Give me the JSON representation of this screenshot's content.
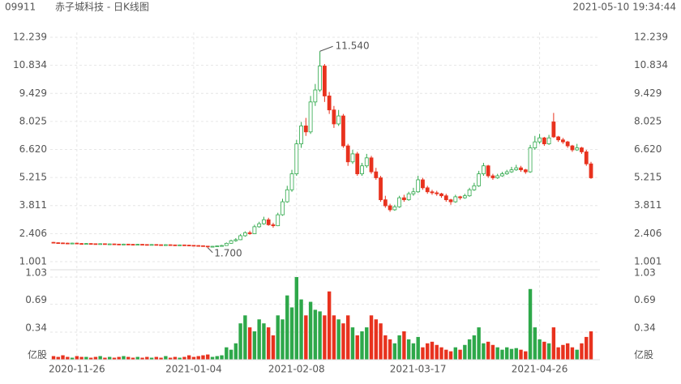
{
  "header": {
    "code": "09911",
    "title": "赤子城科技 - 日K线图",
    "timestamp": "2021-05-10 19:34:44"
  },
  "chart_data": {
    "type": "candlestick",
    "up_color": "#2ea84a",
    "down_color": "#e8321e",
    "categories": [
      null,
      null,
      null,
      null,
      null,
      "2020-11-26",
      null,
      null,
      null,
      null,
      null,
      null,
      null,
      null,
      null,
      null,
      null,
      null,
      null,
      null,
      null,
      null,
      null,
      null,
      null,
      null,
      null,
      null,
      null,
      null,
      "2021-01-04",
      null,
      null,
      null,
      null,
      null,
      null,
      null,
      null,
      null,
      null,
      null,
      null,
      null,
      null,
      null,
      null,
      null,
      null,
      null,
      null,
      null,
      "2021-02-08",
      null,
      null,
      null,
      null,
      null,
      null,
      null,
      null,
      null,
      null,
      null,
      null,
      null,
      null,
      null,
      null,
      null,
      null,
      null,
      null,
      null,
      null,
      null,
      null,
      null,
      "2021-03-17",
      null,
      null,
      null,
      null,
      null,
      null,
      null,
      null,
      null,
      null,
      null,
      null,
      null,
      null,
      null,
      null,
      null,
      null,
      null,
      null,
      null,
      null,
      null,
      null,
      null,
      "2021-04-26",
      null,
      null,
      null,
      null,
      null,
      null,
      null,
      null,
      null,
      null,
      null
    ],
    "ohlc": [
      [
        1.97,
        1.99,
        1.93,
        1.95
      ],
      [
        1.95,
        1.97,
        1.92,
        1.94
      ],
      [
        1.94,
        1.96,
        1.91,
        1.93
      ],
      [
        1.93,
        1.95,
        1.9,
        1.92
      ],
      [
        1.92,
        1.95,
        1.9,
        1.93
      ],
      [
        1.93,
        1.94,
        1.89,
        1.91
      ],
      [
        1.91,
        1.93,
        1.88,
        1.9
      ],
      [
        1.9,
        1.93,
        1.89,
        1.91
      ],
      [
        1.91,
        1.92,
        1.88,
        1.9
      ],
      [
        1.9,
        1.91,
        1.87,
        1.89
      ],
      [
        1.89,
        1.92,
        1.88,
        1.9
      ],
      [
        1.9,
        1.91,
        1.86,
        1.88
      ],
      [
        1.88,
        1.91,
        1.87,
        1.89
      ],
      [
        1.89,
        1.9,
        1.86,
        1.88
      ],
      [
        1.88,
        1.89,
        1.85,
        1.87
      ],
      [
        1.87,
        1.9,
        1.86,
        1.88
      ],
      [
        1.88,
        1.89,
        1.85,
        1.87
      ],
      [
        1.87,
        1.88,
        1.84,
        1.86
      ],
      [
        1.86,
        1.89,
        1.85,
        1.87
      ],
      [
        1.87,
        1.88,
        1.84,
        1.86
      ],
      [
        1.86,
        1.87,
        1.83,
        1.85
      ],
      [
        1.85,
        1.88,
        1.84,
        1.86
      ],
      [
        1.86,
        1.87,
        1.83,
        1.85
      ],
      [
        1.85,
        1.86,
        1.82,
        1.84
      ],
      [
        1.84,
        1.87,
        1.83,
        1.85
      ],
      [
        1.85,
        1.86,
        1.82,
        1.84
      ],
      [
        1.84,
        1.85,
        1.81,
        1.83
      ],
      [
        1.83,
        1.86,
        1.82,
        1.84
      ],
      [
        1.84,
        1.85,
        1.81,
        1.83
      ],
      [
        1.83,
        1.84,
        1.8,
        1.82
      ],
      [
        1.82,
        1.83,
        1.79,
        1.81
      ],
      [
        1.81,
        1.82,
        1.78,
        1.8
      ],
      [
        1.8,
        1.81,
        1.76,
        1.78
      ],
      [
        1.78,
        1.79,
        1.7,
        1.75
      ],
      [
        1.75,
        1.79,
        1.74,
        1.77
      ],
      [
        1.77,
        1.81,
        1.76,
        1.79
      ],
      [
        1.79,
        1.84,
        1.78,
        1.81
      ],
      [
        1.81,
        1.96,
        1.8,
        1.92
      ],
      [
        1.92,
        2.1,
        1.9,
        2.05
      ],
      [
        2.05,
        2.18,
        2.0,
        2.1
      ],
      [
        2.1,
        2.38,
        2.08,
        2.3
      ],
      [
        2.3,
        2.52,
        2.25,
        2.45
      ],
      [
        2.45,
        2.55,
        2.35,
        2.4
      ],
      [
        2.4,
        2.85,
        2.38,
        2.75
      ],
      [
        2.75,
        3.0,
        2.7,
        2.9
      ],
      [
        2.9,
        3.25,
        2.85,
        3.1
      ],
      [
        3.1,
        3.2,
        2.8,
        2.85
      ],
      [
        2.85,
        2.95,
        2.7,
        2.8
      ],
      [
        2.8,
        3.45,
        2.78,
        3.35
      ],
      [
        3.35,
        4.15,
        3.3,
        4.0
      ],
      [
        4.0,
        4.8,
        3.95,
        4.6
      ],
      [
        4.6,
        5.6,
        4.5,
        5.4
      ],
      [
        5.4,
        7.1,
        5.3,
        6.9
      ],
      [
        6.9,
        8.0,
        6.7,
        7.8
      ],
      [
        7.8,
        8.2,
        7.3,
        7.5
      ],
      [
        7.5,
        9.3,
        7.4,
        9.0
      ],
      [
        9.0,
        9.9,
        8.8,
        9.6
      ],
      [
        9.6,
        11.54,
        9.5,
        10.8
      ],
      [
        10.8,
        10.9,
        9.0,
        9.3
      ],
      [
        9.3,
        9.5,
        8.4,
        8.6
      ],
      [
        8.6,
        8.8,
        7.7,
        7.9
      ],
      [
        7.9,
        8.6,
        7.8,
        8.3
      ],
      [
        8.3,
        8.4,
        6.7,
        6.8
      ],
      [
        6.8,
        6.9,
        5.8,
        6.0
      ],
      [
        6.0,
        6.6,
        5.9,
        6.4
      ],
      [
        6.4,
        6.5,
        5.3,
        5.4
      ],
      [
        5.4,
        5.95,
        5.3,
        5.8
      ],
      [
        5.8,
        6.4,
        5.7,
        6.2
      ],
      [
        6.2,
        6.3,
        5.4,
        5.5
      ],
      [
        5.5,
        5.7,
        5.1,
        5.2
      ],
      [
        5.2,
        5.3,
        4.0,
        4.1
      ],
      [
        4.1,
        4.3,
        3.7,
        3.8
      ],
      [
        3.8,
        3.9,
        3.5,
        3.6
      ],
      [
        3.6,
        3.85,
        3.55,
        3.75
      ],
      [
        3.75,
        4.3,
        3.7,
        4.2
      ],
      [
        4.2,
        4.35,
        4.0,
        4.1
      ],
      [
        4.1,
        4.5,
        4.05,
        4.4
      ],
      [
        4.4,
        4.7,
        4.3,
        4.5
      ],
      [
        4.5,
        5.3,
        4.45,
        5.1
      ],
      [
        5.1,
        5.2,
        4.6,
        4.7
      ],
      [
        4.7,
        4.8,
        4.4,
        4.5
      ],
      [
        4.5,
        4.6,
        4.35,
        4.45
      ],
      [
        4.45,
        4.55,
        4.3,
        4.4
      ],
      [
        4.4,
        4.45,
        4.2,
        4.3
      ],
      [
        4.3,
        4.4,
        4.0,
        4.1
      ],
      [
        4.1,
        4.15,
        3.85,
        4.0
      ],
      [
        4.0,
        4.35,
        3.95,
        4.25
      ],
      [
        4.25,
        4.3,
        4.1,
        4.2
      ],
      [
        4.2,
        4.4,
        4.15,
        4.3
      ],
      [
        4.3,
        4.7,
        4.25,
        4.6
      ],
      [
        4.6,
        4.95,
        4.55,
        4.8
      ],
      [
        4.8,
        5.55,
        4.75,
        5.4
      ],
      [
        5.4,
        5.95,
        5.3,
        5.8
      ],
      [
        5.8,
        5.85,
        5.2,
        5.3
      ],
      [
        5.3,
        5.4,
        5.1,
        5.2
      ],
      [
        5.2,
        5.4,
        5.15,
        5.3
      ],
      [
        5.3,
        5.5,
        5.25,
        5.4
      ],
      [
        5.4,
        5.6,
        5.35,
        5.5
      ],
      [
        5.5,
        5.75,
        5.45,
        5.6
      ],
      [
        5.6,
        5.85,
        5.55,
        5.7
      ],
      [
        5.7,
        5.8,
        5.5,
        5.6
      ],
      [
        5.6,
        5.65,
        5.4,
        5.5
      ],
      [
        5.5,
        6.85,
        5.45,
        6.7
      ],
      [
        6.7,
        7.3,
        6.6,
        7.0
      ],
      [
        7.0,
        7.4,
        6.9,
        7.2
      ],
      [
        7.2,
        7.25,
        6.8,
        6.9
      ],
      [
        6.9,
        7.35,
        6.85,
        7.2
      ],
      [
        8.0,
        8.45,
        7.2,
        7.25
      ],
      [
        7.25,
        7.3,
        7.0,
        7.1
      ],
      [
        7.1,
        7.2,
        6.9,
        7.0
      ],
      [
        7.0,
        7.05,
        6.7,
        6.8
      ],
      [
        6.8,
        6.85,
        6.5,
        6.6
      ],
      [
        6.6,
        6.9,
        6.55,
        6.7
      ],
      [
        6.7,
        6.75,
        6.4,
        6.5
      ],
      [
        6.5,
        6.6,
        5.8,
        5.9
      ],
      [
        5.9,
        6.0,
        5.15,
        5.2
      ]
    ],
    "volume": [
      0.04,
      0.03,
      0.05,
      0.03,
      0.02,
      0.04,
      0.03,
      0.03,
      0.02,
      0.03,
      0.04,
      0.02,
      0.03,
      0.02,
      0.03,
      0.04,
      0.03,
      0.02,
      0.03,
      0.02,
      0.03,
      0.02,
      0.03,
      0.02,
      0.04,
      0.02,
      0.03,
      0.02,
      0.03,
      0.05,
      0.03,
      0.04,
      0.05,
      0.06,
      0.03,
      0.04,
      0.05,
      0.15,
      0.12,
      0.2,
      0.45,
      0.55,
      0.4,
      0.35,
      0.5,
      0.45,
      0.4,
      0.3,
      0.55,
      0.5,
      0.8,
      0.65,
      1.03,
      0.75,
      0.55,
      0.72,
      0.62,
      0.6,
      0.55,
      0.85,
      0.55,
      0.5,
      0.45,
      0.55,
      0.4,
      0.3,
      0.35,
      0.4,
      0.55,
      0.5,
      0.45,
      0.3,
      0.25,
      0.2,
      0.3,
      0.35,
      0.25,
      0.2,
      0.28,
      0.15,
      0.2,
      0.22,
      0.18,
      0.15,
      0.12,
      0.1,
      0.15,
      0.12,
      0.18,
      0.25,
      0.3,
      0.4,
      0.2,
      0.22,
      0.18,
      0.15,
      0.12,
      0.15,
      0.13,
      0.14,
      0.12,
      0.1,
      0.88,
      0.4,
      0.25,
      0.22,
      0.2,
      0.4,
      0.15,
      0.18,
      0.2,
      0.15,
      0.12,
      0.2,
      0.28,
      0.35
    ],
    "ylim": [
      1.001,
      12.239
    ],
    "yticks": [
      1.001,
      2.406,
      3.811,
      5.215,
      {
        "value": 6.62,
        "label": "6.620"
      },
      8.025,
      9.429,
      10.834,
      12.239
    ],
    "y2lim": [
      0,
      1.03
    ],
    "y2ticks": [
      {
        "value": 0,
        "label": "亿股"
      },
      0.34,
      0.69,
      1.03
    ],
    "max_marker": {
      "value": 11.54,
      "label": "11.540"
    },
    "min_marker": {
      "value": 1.7,
      "label": "1.700"
    },
    "grid": true
  }
}
